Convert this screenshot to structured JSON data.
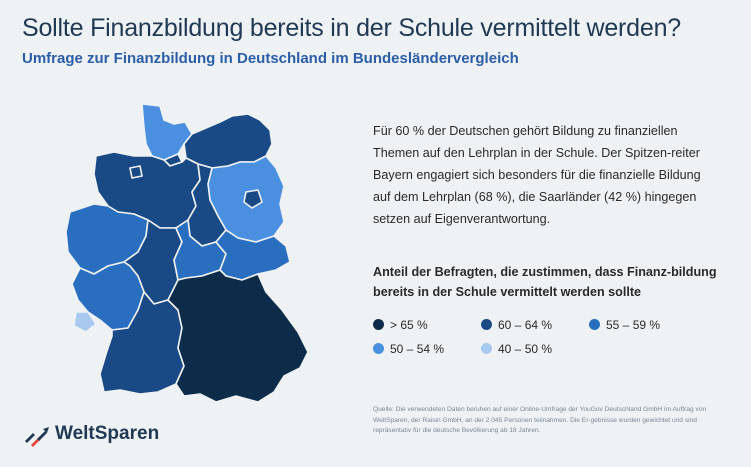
{
  "header": {
    "title": "Sollte Finanzbildung bereits in der Schule vermittelt werden?",
    "subtitle": "Umfrage zur Finanzbildung in Deutschland im Bundesländervergleich"
  },
  "description": "Für 60 % der Deutschen gehört Bildung zu finanziellen Themen auf den Lehrplan in der Schule. Der Spitzen-reiter Bayern engagiert sich besonders für die finanzielle Bildung auf dem Lehrplan (68 %), die Saarländer (42 %) hingegen setzen auf Eigenverantwortung.",
  "legend": {
    "title": "Anteil der Befragten, die zustimmen, dass Finanz-bildung bereits in der Schule vermittelt werden sollte",
    "items": [
      {
        "label": "> 65 %",
        "color": "#0d2c4a"
      },
      {
        "label": "60 – 64 %",
        "color": "#1a4a85"
      },
      {
        "label": "55 – 59 %",
        "color": "#2a6ec0"
      },
      {
        "label": "50 – 54 %",
        "color": "#4a8fe0"
      },
      {
        "label": "40 – 50 %",
        "color": "#a9c9ef"
      }
    ]
  },
  "map": {
    "states": [
      {
        "name": "Schleswig-Holstein",
        "category": "50 – 54 %",
        "color": "#4a8fe0"
      },
      {
        "name": "Hamburg",
        "category": "60 – 64 %",
        "color": "#1a4a85"
      },
      {
        "name": "Mecklenburg-Vorpommern",
        "category": "60 – 64 %",
        "color": "#1a4a85"
      },
      {
        "name": "Niedersachsen",
        "category": "60 – 64 %",
        "color": "#1a4a85"
      },
      {
        "name": "Bremen",
        "category": "60 – 64 %",
        "color": "#1a4a85"
      },
      {
        "name": "Brandenburg",
        "category": "50 – 54 %",
        "color": "#4a8fe0"
      },
      {
        "name": "Berlin",
        "category": "60 – 64 %",
        "color": "#1a4a85"
      },
      {
        "name": "Sachsen-Anhalt",
        "category": "60 – 64 %",
        "color": "#1a4a85"
      },
      {
        "name": "Nordrhein-Westfalen",
        "category": "55 – 59 %",
        "color": "#2a6ec0"
      },
      {
        "name": "Hessen",
        "category": "60 – 64 %",
        "color": "#1a4a85"
      },
      {
        "name": "Thüringen",
        "category": "55 – 59 %",
        "color": "#2a6ec0"
      },
      {
        "name": "Sachsen",
        "category": "55 – 59 %",
        "color": "#2a6ec0"
      },
      {
        "name": "Rheinland-Pfalz",
        "category": "55 – 59 %",
        "color": "#2a6ec0"
      },
      {
        "name": "Saarland",
        "category": "40 – 50 %",
        "color": "#a9c9ef"
      },
      {
        "name": "Baden-Württemberg",
        "category": "60 – 64 %",
        "color": "#1a4a85"
      },
      {
        "name": "Bayern",
        "category": "> 65 %",
        "color": "#0d2c4a"
      }
    ]
  },
  "source": "Quelle: Die verwendeten Daten beruhen auf einer Online-Umfrage der YouGov Deutschland GmbH im Auftrag von WeltSparen, der Raisin GmbH, an der 2.045 Personen teilnahmen. Die Er-gebnisse wurden gewichtet und sind repräsentativ für die deutsche Bevölkerung ab 18 Jahren.",
  "brand": {
    "name": "WeltSparen",
    "icon": "weltsparen-logo-icon"
  }
}
